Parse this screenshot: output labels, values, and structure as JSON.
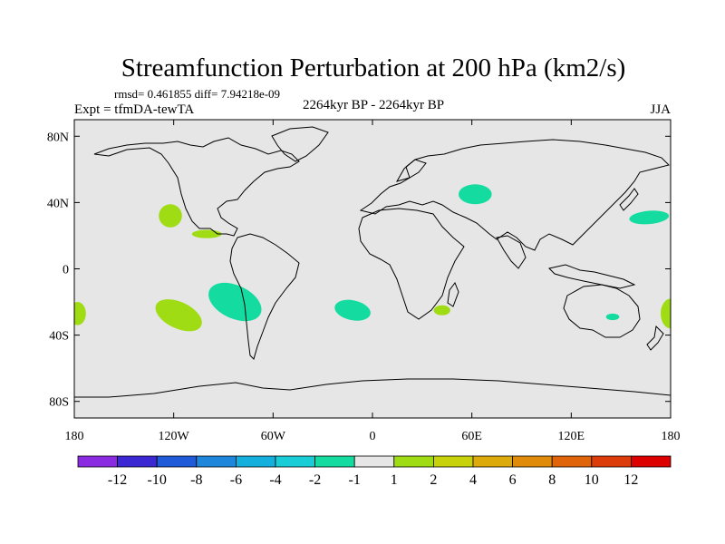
{
  "chart_data": {
    "type": "heatmap",
    "title": "Streamfunction Perturbation at 200 hPa (km2/s)",
    "stats_label": "rmsd= 0.461855 diff= 7.94218e-09",
    "left_label": "Expt = tfmDA-tewTA",
    "center_label": "2264kyr BP - 2264kyr BP",
    "right_label": "JJA",
    "x_ticks": [
      {
        "lon": -180,
        "label": "180"
      },
      {
        "lon": -120,
        "label": "120W"
      },
      {
        "lon": -60,
        "label": "60W"
      },
      {
        "lon": 0,
        "label": "0"
      },
      {
        "lon": 60,
        "label": "60E"
      },
      {
        "lon": 120,
        "label": "120E"
      },
      {
        "lon": 180,
        "label": "180"
      }
    ],
    "y_ticks": [
      {
        "lat": 80,
        "label": "80N"
      },
      {
        "lat": 40,
        "label": "40N"
      },
      {
        "lat": 0,
        "label": "0"
      },
      {
        "lat": -40,
        "label": "40S"
      },
      {
        "lat": -80,
        "label": "80S"
      }
    ],
    "lon_range": [
      -180,
      180
    ],
    "lat_range": [
      -90,
      90
    ],
    "colorbar": {
      "colors": [
        "#8a2be2",
        "#3c28d2",
        "#1f5ad8",
        "#1e87dc",
        "#14afdc",
        "#18cdd5",
        "#14dca0",
        "#e6e6e6",
        "#a0dc14",
        "#c8d20a",
        "#dcaa0a",
        "#e08c0a",
        "#e0640a",
        "#dc3c0a",
        "#dc0000"
      ],
      "labels": [
        "-12",
        "-10",
        "-8",
        "-6",
        "-4",
        "-2",
        "-1",
        "1",
        "2",
        "4",
        "6",
        "8",
        "10",
        "12"
      ]
    },
    "anomaly_patches": [
      {
        "lon": -122,
        "lat": 32,
        "rlon": 7,
        "rlat": 7,
        "rot": 0,
        "color": "#a0dc14"
      },
      {
        "lon": -100,
        "lat": 21,
        "rlon": 9,
        "rlat": 2.5,
        "rot": 0,
        "color": "#a0dc14"
      },
      {
        "lon": -178,
        "lat": -27,
        "rlon": 5,
        "rlat": 7,
        "rot": 0,
        "color": "#a0dc14"
      },
      {
        "lon": -117,
        "lat": -28,
        "rlon": 15,
        "rlat": 8,
        "rot": 25,
        "color": "#a0dc14"
      },
      {
        "lon": -83,
        "lat": -20,
        "rlon": 17,
        "rlat": 10,
        "rot": 25,
        "color": "#14dca0"
      },
      {
        "lon": -12,
        "lat": -25,
        "rlon": 11,
        "rlat": 6,
        "rot": 12,
        "color": "#14dca0"
      },
      {
        "lon": 42,
        "lat": -25,
        "rlon": 5,
        "rlat": 3,
        "rot": 0,
        "color": "#a0dc14"
      },
      {
        "lon": 62,
        "lat": 45,
        "rlon": 10,
        "rlat": 6,
        "rot": 0,
        "color": "#14dca0"
      },
      {
        "lon": 167,
        "lat": 31,
        "rlon": 12,
        "rlat": 4,
        "rot": -5,
        "color": "#14dca0"
      },
      {
        "lon": 145,
        "lat": -29,
        "rlon": 4,
        "rlat": 2,
        "rot": 0,
        "color": "#14dca0"
      },
      {
        "lon": 180,
        "lat": -27,
        "rlon": 6,
        "rlat": 9,
        "rot": 0,
        "color": "#a0dc14"
      }
    ]
  }
}
